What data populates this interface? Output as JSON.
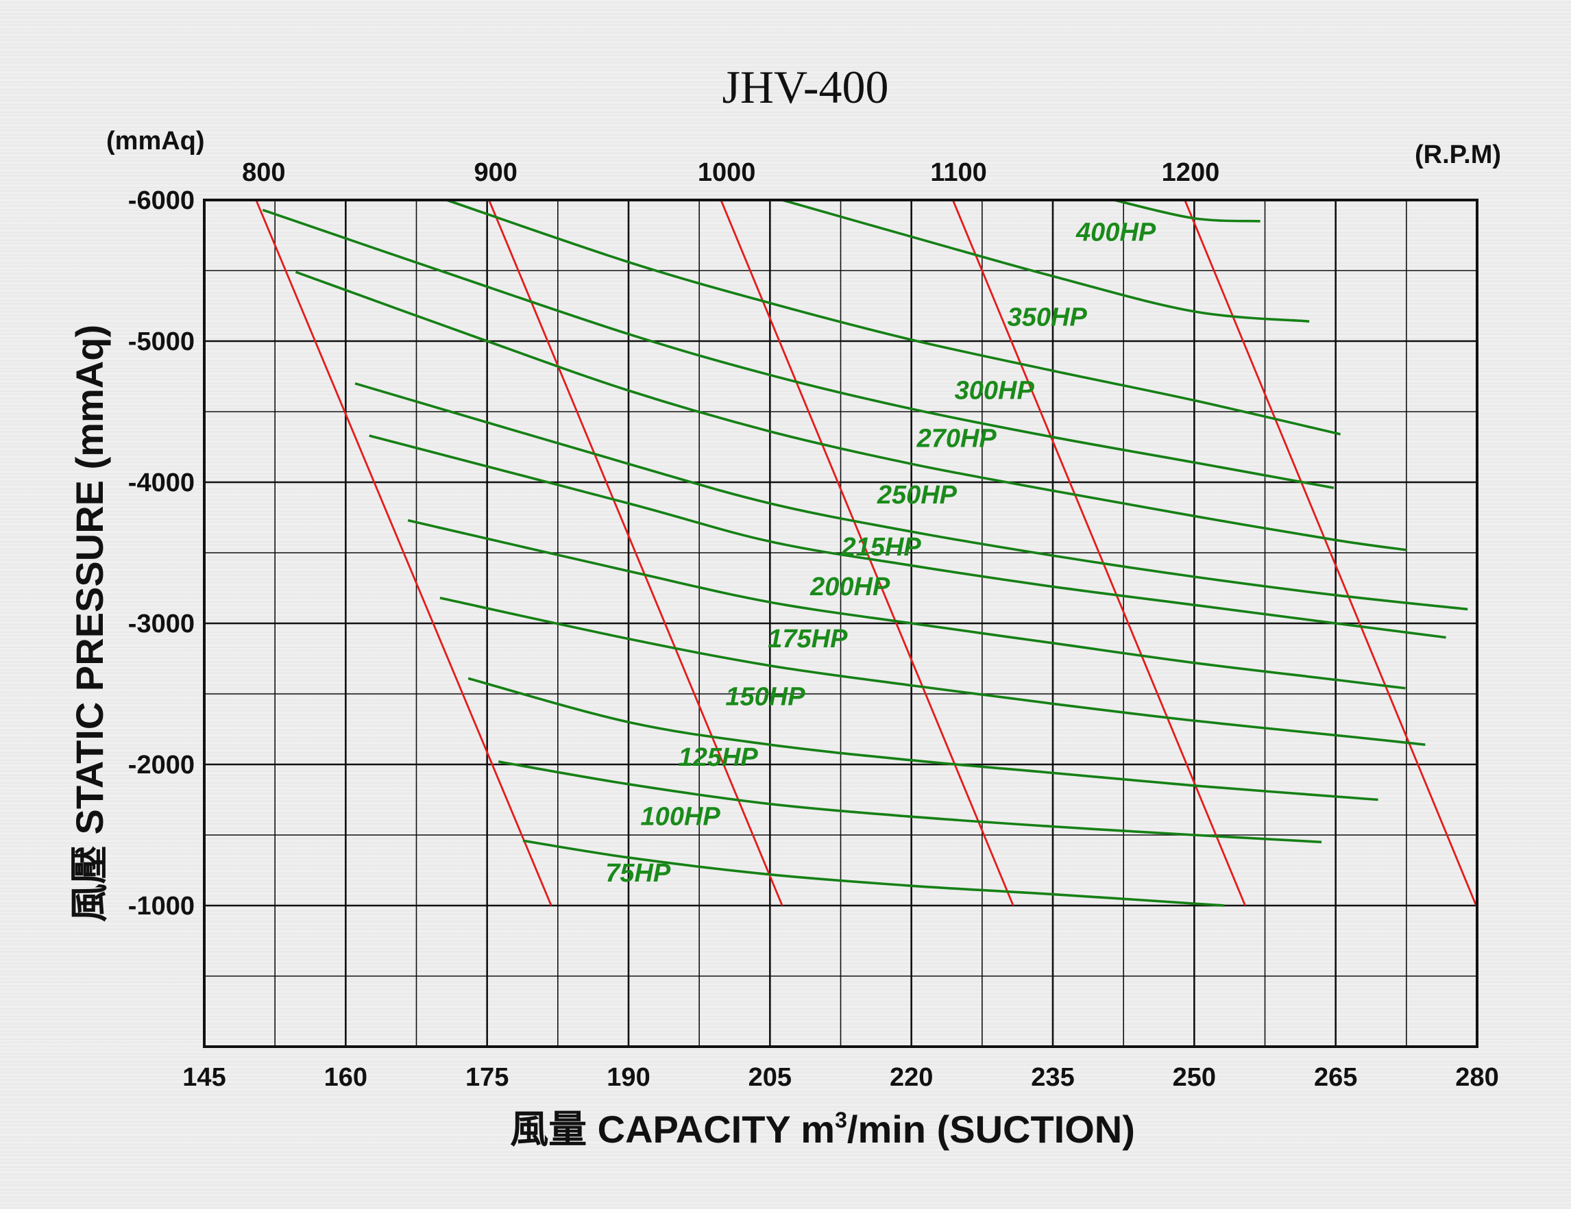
{
  "chart_data": {
    "type": "line",
    "title": "JHV-400",
    "y_unit": "(mmAq)",
    "rpm_unit": "(R.P.M)",
    "ylabel": "風壓  STATIC  PRESSURE  (mmAq)",
    "xlabel_main": "風量  CAPACITY  m",
    "xlabel_sup": "3",
    "xlabel_tail": "/min (SUCTION)",
    "xlim": [
      145,
      280
    ],
    "ylim": [
      0,
      -6000
    ],
    "x_ticks": [
      "145",
      "160",
      "175",
      "190",
      "205",
      "220",
      "235",
      "250",
      "265",
      "280"
    ],
    "y_ticks": [
      "-1000",
      "-2000",
      "-3000",
      "-4000",
      "-5000",
      "-6000"
    ],
    "rpm_ticks": [
      {
        "label": "800",
        "x": 150.0
      },
      {
        "label": "900",
        "x": 174.6
      },
      {
        "label": "1000",
        "x": 199.1
      },
      {
        "label": "1100",
        "x": 223.7
      },
      {
        "label": "1200",
        "x": 248.3
      }
    ],
    "grid": true,
    "rpm_series": [
      {
        "rpm": 800,
        "points": [
          [
            150.5,
            -6000
          ],
          [
            181.8,
            -1000
          ]
        ]
      },
      {
        "rpm": 900,
        "points": [
          [
            175.2,
            -6000
          ],
          [
            206.3,
            -1000
          ]
        ]
      },
      {
        "rpm": 1000,
        "points": [
          [
            199.8,
            -6000
          ],
          [
            230.8,
            -1000
          ]
        ]
      },
      {
        "rpm": 1100,
        "points": [
          [
            224.4,
            -6000
          ],
          [
            255.4,
            -1000
          ]
        ]
      },
      {
        "rpm": 1200,
        "points": [
          [
            249.0,
            -6000
          ],
          [
            279.9,
            -1000
          ]
        ]
      }
    ],
    "hp_series": [
      {
        "name": "75HP",
        "label_at": [
          191.0,
          -1170
        ],
        "points": [
          [
            178.8,
            -1460
          ],
          [
            190,
            -1340
          ],
          [
            205,
            -1220
          ],
          [
            220,
            -1140
          ],
          [
            235,
            -1080
          ],
          [
            253.2,
            -1000
          ]
        ]
      },
      {
        "name": "100HP",
        "label_at": [
          195.5,
          -1570
        ],
        "points": [
          [
            176.2,
            -2020
          ],
          [
            190,
            -1860
          ],
          [
            205,
            -1720
          ],
          [
            220,
            -1630
          ],
          [
            235,
            -1560
          ],
          [
            250,
            -1500
          ],
          [
            263.5,
            -1450
          ]
        ]
      },
      {
        "name": "125HP",
        "label_at": [
          199.5,
          -1990
        ],
        "points": [
          [
            173.0,
            -2610
          ],
          [
            190,
            -2300
          ],
          [
            205,
            -2140
          ],
          [
            220,
            -2030
          ],
          [
            235,
            -1940
          ],
          [
            250,
            -1850
          ],
          [
            269.5,
            -1750
          ]
        ]
      },
      {
        "name": "150HP",
        "label_at": [
          204.5,
          -2420
        ],
        "points": [
          [
            170.0,
            -3180
          ],
          [
            190,
            -2890
          ],
          [
            205,
            -2700
          ],
          [
            220,
            -2560
          ],
          [
            235,
            -2430
          ],
          [
            250,
            -2310
          ],
          [
            267.5,
            -2190
          ],
          [
            274.5,
            -2140
          ]
        ]
      },
      {
        "name": "175HP",
        "label_at": [
          209.0,
          -2830
        ],
        "points": [
          [
            166.6,
            -3730
          ],
          [
            190,
            -3370
          ],
          [
            205,
            -3150
          ],
          [
            220,
            -3000
          ],
          [
            235,
            -2860
          ],
          [
            250,
            -2720
          ],
          [
            265,
            -2600
          ],
          [
            272.4,
            -2540
          ]
        ]
      },
      {
        "name": "200HP",
        "label_at": [
          213.5,
          -3200
        ],
        "points": [
          [
            162.5,
            -4330
          ],
          [
            190,
            -3850
          ],
          [
            205,
            -3580
          ],
          [
            220,
            -3410
          ],
          [
            235,
            -3260
          ],
          [
            250,
            -3130
          ],
          [
            265,
            -3000
          ],
          [
            276.7,
            -2900
          ]
        ]
      },
      {
        "name": "215HP",
        "label_at": [
          216.8,
          -3480
        ],
        "points": [
          [
            161.0,
            -4700
          ],
          [
            190,
            -4130
          ],
          [
            205,
            -3850
          ],
          [
            220,
            -3650
          ],
          [
            235,
            -3480
          ],
          [
            250,
            -3330
          ],
          [
            265,
            -3200
          ],
          [
            279.0,
            -3100
          ]
        ]
      },
      {
        "name": "250HP",
        "label_at": [
          220.6,
          -3850
        ],
        "points": [
          [
            154.7,
            -5490
          ],
          [
            175,
            -5000
          ],
          [
            190,
            -4650
          ],
          [
            205,
            -4360
          ],
          [
            220,
            -4130
          ],
          [
            235,
            -3940
          ],
          [
            250,
            -3760
          ],
          [
            265,
            -3590
          ],
          [
            272.5,
            -3520
          ]
        ]
      },
      {
        "name": "270HP",
        "label_at": [
          224.8,
          -4250
        ],
        "points": [
          [
            151.2,
            -5930
          ],
          [
            170,
            -5500
          ],
          [
            190,
            -5050
          ],
          [
            205,
            -4760
          ],
          [
            220,
            -4520
          ],
          [
            235,
            -4320
          ],
          [
            250,
            -4140
          ],
          [
            264.8,
            -3960
          ]
        ]
      },
      {
        "name": "300HP",
        "label_at": [
          228.8,
          -4590
        ],
        "points": [
          [
            170.7,
            -6000
          ],
          [
            190,
            -5560
          ],
          [
            205,
            -5270
          ],
          [
            220,
            -5010
          ],
          [
            235,
            -4790
          ],
          [
            250,
            -4580
          ],
          [
            265.5,
            -4340
          ]
        ]
      },
      {
        "name": "350HP",
        "label_at": [
          234.4,
          -5110
        ],
        "points": [
          [
            206.3,
            -6000
          ],
          [
            220,
            -5740
          ],
          [
            235,
            -5460
          ],
          [
            250,
            -5210
          ],
          [
            262.2,
            -5140
          ]
        ]
      },
      {
        "name": "400HP",
        "label_at": [
          241.7,
          -5710
        ],
        "points": [
          [
            241.5,
            -6000
          ],
          [
            250,
            -5870
          ],
          [
            257.0,
            -5850
          ]
        ]
      }
    ]
  }
}
